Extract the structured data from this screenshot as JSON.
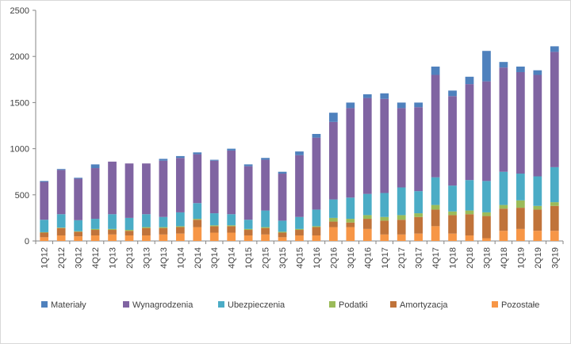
{
  "chart_data": {
    "type": "bar",
    "stacked": true,
    "title": "",
    "xlabel": "",
    "ylabel": "",
    "ylim": [
      0,
      2500
    ],
    "yticks": [
      0,
      500,
      1000,
      1500,
      2000,
      2500
    ],
    "grid": false,
    "legend_position": "bottom",
    "categories": [
      "1Q12",
      "2Q12",
      "3Q12",
      "4Q12",
      "1Q13",
      "2Q13",
      "3Q13",
      "4Q13",
      "1Q14",
      "2Q14",
      "3Q14",
      "4Q14",
      "1Q15",
      "2Q15",
      "3Q15",
      "4Q15",
      "1Q16",
      "2Q16",
      "3Q16",
      "4Q16",
      "1Q17",
      "2Q17",
      "3Q17",
      "4Q17",
      "1Q18",
      "2Q18",
      "3Q18",
      "4Q18",
      "1Q19",
      "2Q19",
      "3Q19"
    ],
    "series": [
      {
        "name": "Pozostałe",
        "color": "#f79646",
        "values": [
          40,
          60,
          50,
          60,
          70,
          60,
          60,
          70,
          80,
          150,
          90,
          90,
          60,
          70,
          40,
          60,
          60,
          150,
          150,
          130,
          70,
          70,
          80,
          160,
          80,
          60,
          30,
          110,
          130,
          110,
          110
        ]
      },
      {
        "name": "Amortyzacja",
        "color": "#c0733a",
        "values": [
          50,
          80,
          50,
          60,
          50,
          50,
          80,
          70,
          70,
          80,
          70,
          70,
          60,
          70,
          50,
          60,
          90,
          60,
          50,
          110,
          150,
          160,
          180,
          180,
          200,
          230,
          240,
          240,
          230,
          230,
          270
        ]
      },
      {
        "name": "Podatki",
        "color": "#9bbb59",
        "values": [
          5,
          5,
          5,
          10,
          10,
          10,
          10,
          10,
          10,
          10,
          10,
          10,
          10,
          10,
          10,
          10,
          10,
          40,
          40,
          40,
          40,
          50,
          40,
          50,
          40,
          40,
          40,
          40,
          80,
          40,
          40
        ]
      },
      {
        "name": "Ubezpieczenia",
        "color": "#4bacc6",
        "values": [
          135,
          145,
          120,
          110,
          160,
          130,
          140,
          110,
          150,
          170,
          130,
          120,
          100,
          180,
          120,
          130,
          180,
          200,
          230,
          230,
          260,
          300,
          240,
          300,
          280,
          330,
          340,
          360,
          290,
          320,
          380
        ]
      },
      {
        "name": "Wynagrodzenia",
        "color": "#8064a2",
        "values": [
          410,
          480,
          450,
          550,
          570,
          590,
          550,
          610,
          590,
          530,
          570,
          690,
          580,
          550,
          510,
          670,
          780,
          840,
          970,
          1040,
          1020,
          860,
          910,
          1110,
          970,
          1040,
          1080,
          1130,
          1100,
          1100,
          1250
        ]
      },
      {
        "name": "Materiały",
        "color": "#4f81bd",
        "values": [
          10,
          10,
          10,
          40,
          0,
          0,
          0,
          20,
          20,
          20,
          10,
          20,
          20,
          20,
          20,
          40,
          40,
          100,
          60,
          40,
          60,
          60,
          50,
          90,
          60,
          80,
          330,
          60,
          60,
          50,
          60
        ]
      }
    ]
  },
  "legend_order": [
    "Materiały",
    "Wynagrodzenia",
    "Ubezpieczenia",
    "Podatki",
    "Amortyzacja",
    "Pozostałe"
  ]
}
